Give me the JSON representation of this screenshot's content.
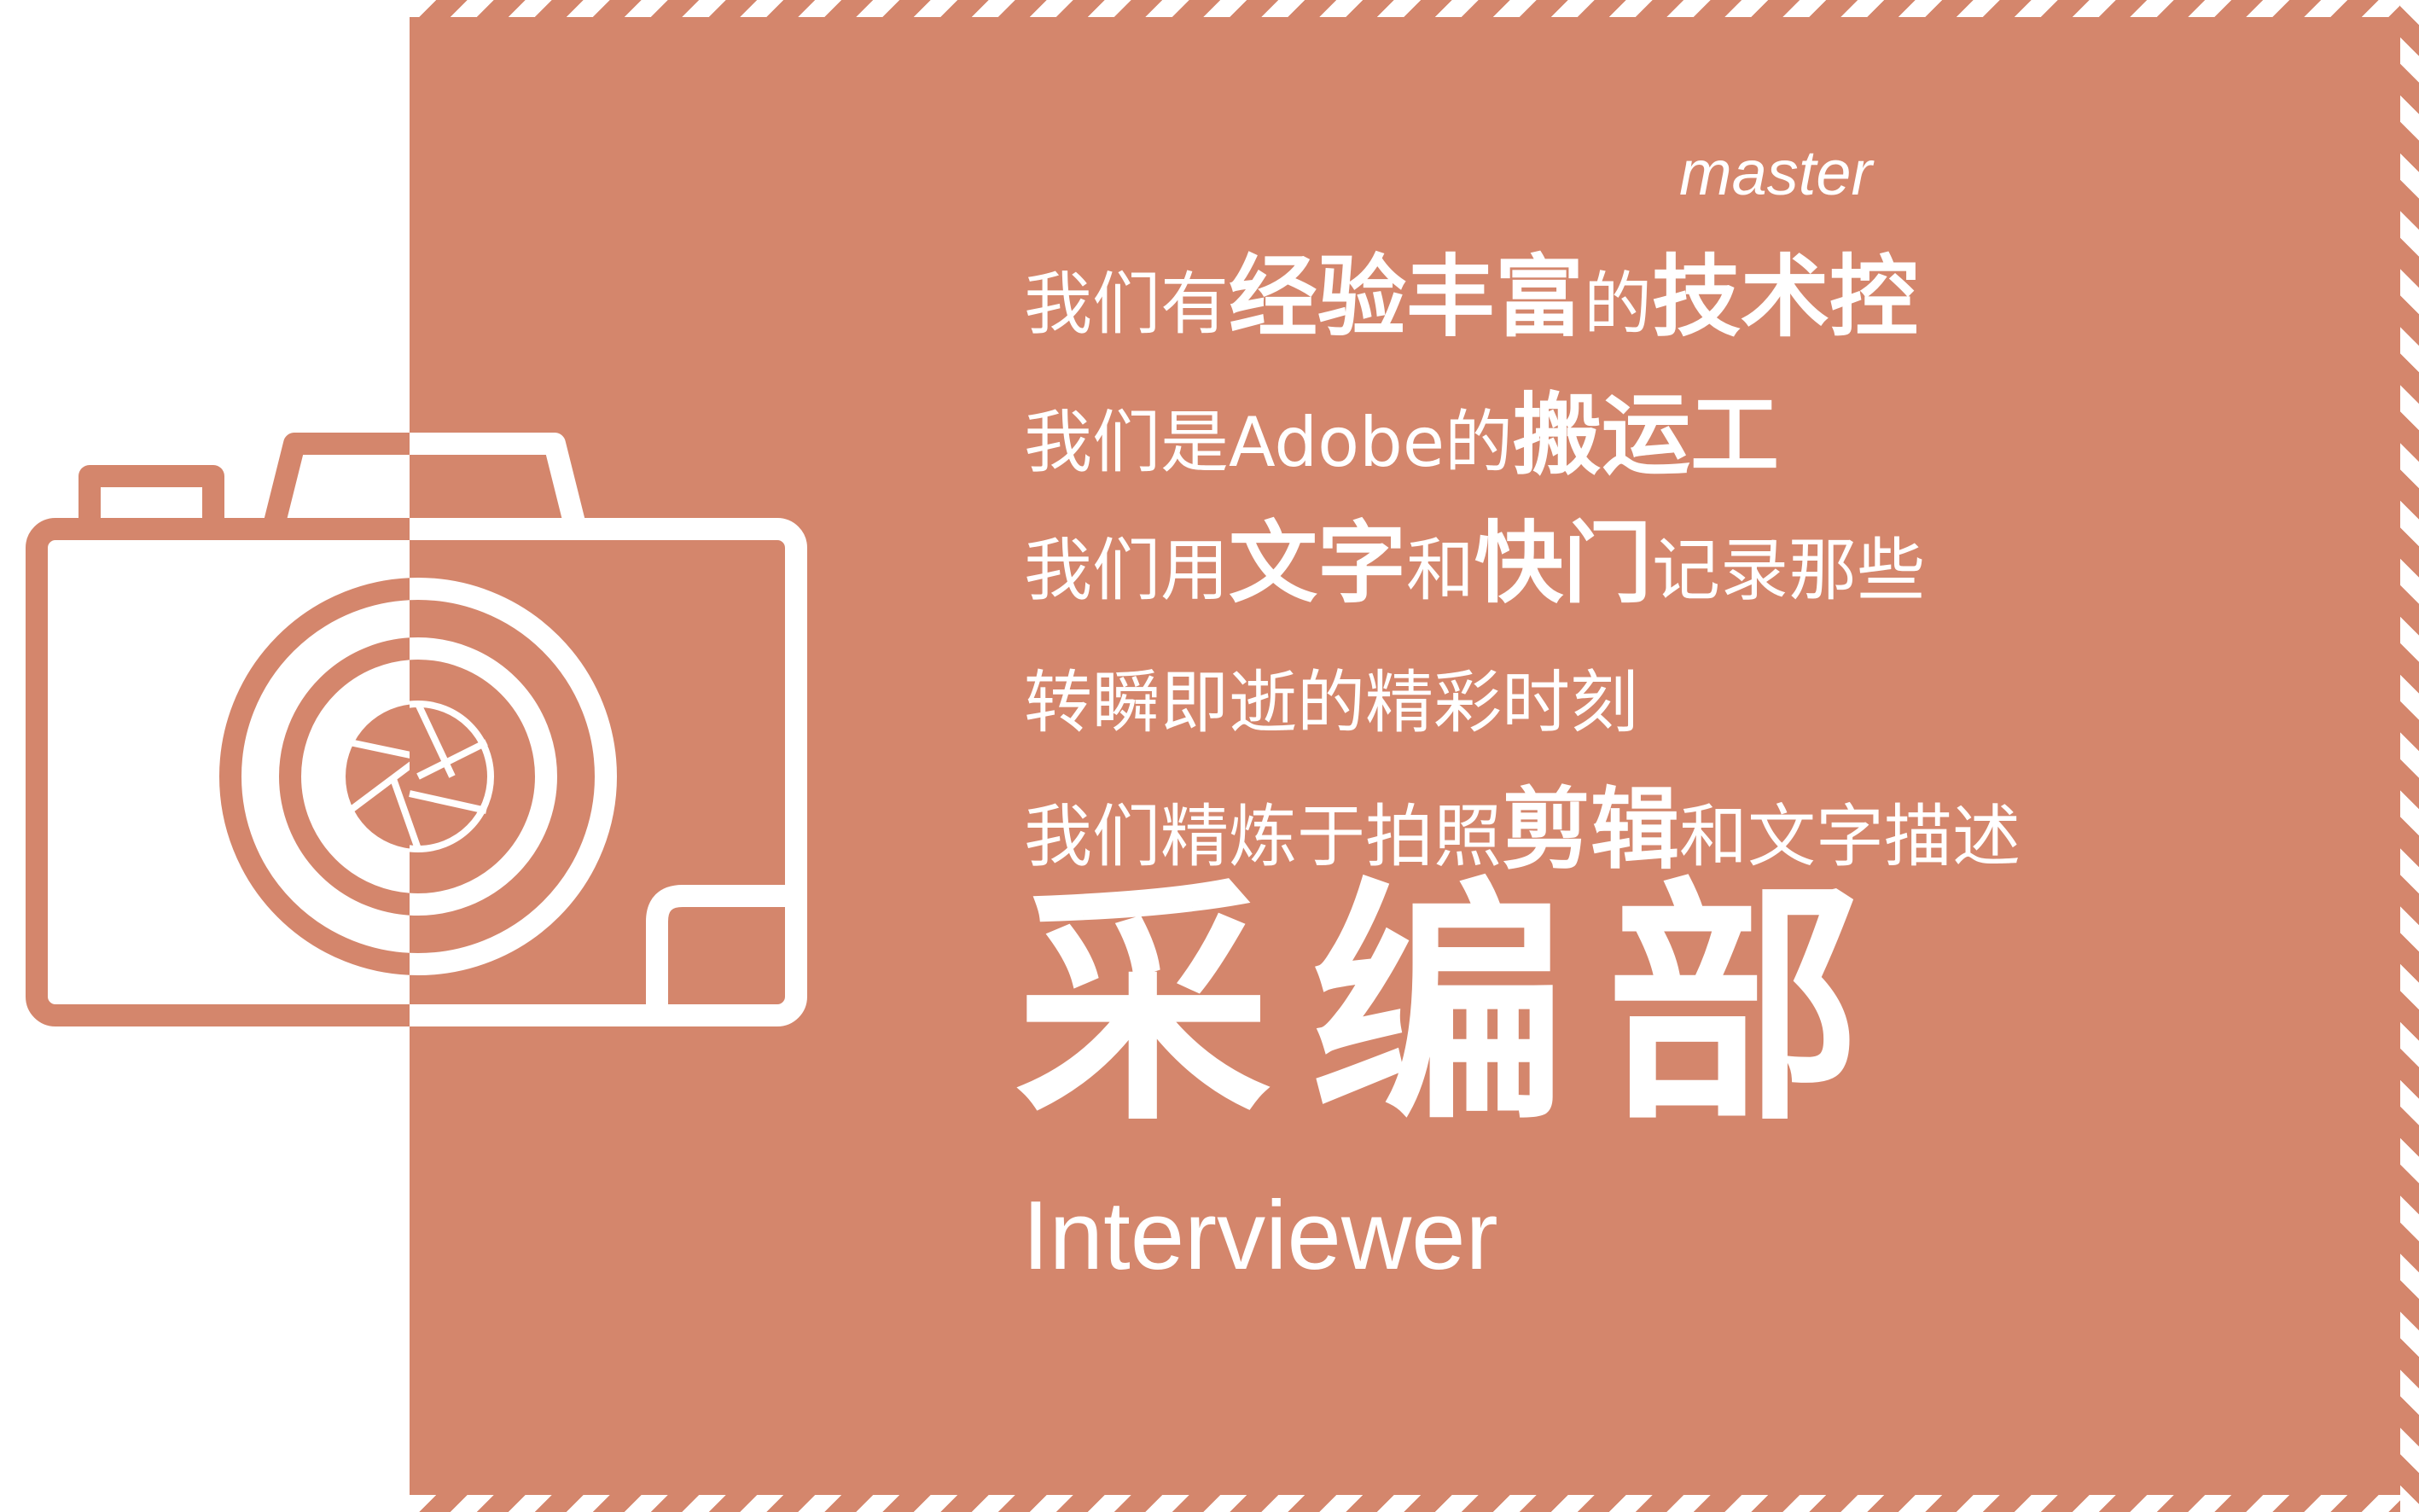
{
  "colors": {
    "accent": "#d4866c",
    "background": "#ffffff",
    "text": "#ffffff"
  },
  "icon": "camera-icon",
  "master": "master",
  "lines": [
    {
      "a": "我们有",
      "b": "经验丰富",
      "c": "的",
      "d": "技术控"
    },
    {
      "a": "我们是Adobe的",
      "b": "搬运工"
    },
    {
      "a": "我们用",
      "b": "文字",
      "c": "和",
      "d": "快门",
      "e": "记录那些"
    },
    {
      "a": "转瞬即逝的精彩时刻"
    },
    {
      "a": "我们精炼于拍照",
      "b": "剪辑",
      "c": "和文字描述"
    }
  ],
  "title": "采编部",
  "subtitle": "Interviewer"
}
